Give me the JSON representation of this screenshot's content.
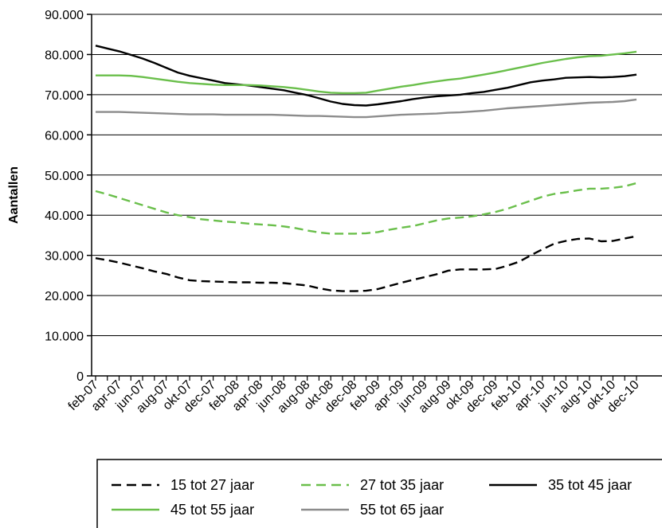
{
  "chart_data": {
    "type": "line",
    "ylabel": "Aantallen",
    "xlabel": "",
    "ylim": [
      0,
      90000
    ],
    "yticks": [
      0,
      10000,
      20000,
      30000,
      40000,
      50000,
      60000,
      70000,
      80000,
      90000
    ],
    "ytick_labels": [
      "0",
      "10.000",
      "20.000",
      "30.000",
      "40.000",
      "50.000",
      "60.000",
      "70.000",
      "80.000",
      "90.000"
    ],
    "categories": [
      "feb-07",
      "mrt-07",
      "apr-07",
      "mei-07",
      "jun-07",
      "jul-07",
      "aug-07",
      "sep-07",
      "okt-07",
      "nov-07",
      "dec-07",
      "jan-08",
      "feb-08",
      "mrt-08",
      "apr-08",
      "mei-08",
      "jun-08",
      "jul-08",
      "aug-08",
      "sep-08",
      "okt-08",
      "nov-08",
      "dec-08",
      "jan-09",
      "feb-09",
      "mrt-09",
      "apr-09",
      "mei-09",
      "jun-09",
      "jul-09",
      "aug-09",
      "sep-09",
      "okt-09",
      "nov-09",
      "dec-09",
      "jan-10",
      "feb-10",
      "mrt-10",
      "apr-10",
      "mei-10",
      "jun-10",
      "jul-10",
      "aug-10",
      "sep-10",
      "okt-10",
      "nov-10",
      "dec-10"
    ],
    "xtick_labels": [
      "feb-07",
      "apr-07",
      "jun-07",
      "aug-07",
      "okt-07",
      "dec-07",
      "feb-08",
      "apr-08",
      "jun-08",
      "aug-08",
      "okt-08",
      "dec-08",
      "feb-09",
      "apr-09",
      "jun-09",
      "aug-09",
      "okt-09",
      "dec-09",
      "feb-10",
      "apr-10",
      "jun-10",
      "aug-10",
      "okt-10",
      "dec-10"
    ],
    "grid": "horizontal",
    "legend_position": "bottom",
    "series": [
      {
        "name": "15 tot 27 jaar",
        "color": "#000000",
        "dash": "dashed",
        "values": [
          29300,
          28800,
          28200,
          27500,
          26800,
          26000,
          25400,
          24500,
          23800,
          23600,
          23500,
          23400,
          23300,
          23300,
          23200,
          23200,
          23100,
          22800,
          22500,
          21800,
          21300,
          21100,
          21100,
          21200,
          21600,
          22400,
          23200,
          23900,
          24600,
          25300,
          26200,
          26500,
          26500,
          26500,
          26600,
          27400,
          28400,
          30000,
          31500,
          32900,
          33600,
          34100,
          34200,
          33500,
          33600,
          34200,
          34800
        ]
      },
      {
        "name": "27 tot 35 jaar",
        "color": "#6abf4b",
        "dash": "dashed",
        "values": [
          46000,
          45200,
          44300,
          43400,
          42500,
          41600,
          40700,
          40000,
          39500,
          39000,
          38700,
          38400,
          38200,
          37900,
          37700,
          37500,
          37200,
          36800,
          36200,
          35700,
          35400,
          35400,
          35400,
          35500,
          35800,
          36400,
          36900,
          37300,
          38000,
          38700,
          39200,
          39400,
          39700,
          40200,
          40800,
          41600,
          42600,
          43600,
          44600,
          45300,
          45700,
          46200,
          46600,
          46600,
          46800,
          47200,
          48000
        ]
      },
      {
        "name": "35 tot 45 jaar",
        "color": "#000000",
        "dash": "solid",
        "values": [
          82200,
          81500,
          80800,
          79900,
          79000,
          77900,
          76700,
          75500,
          74700,
          74100,
          73500,
          72900,
          72600,
          72300,
          71900,
          71500,
          71100,
          70500,
          69900,
          69100,
          68300,
          67700,
          67400,
          67300,
          67600,
          68000,
          68400,
          68900,
          69300,
          69600,
          69800,
          70000,
          70400,
          70700,
          71200,
          71700,
          72400,
          73100,
          73500,
          73800,
          74200,
          74300,
          74400,
          74300,
          74400,
          74600,
          75000
        ]
      },
      {
        "name": "45 tot 55 jaar",
        "color": "#6abf4b",
        "dash": "solid",
        "values": [
          74800,
          74800,
          74800,
          74700,
          74400,
          74000,
          73600,
          73200,
          72900,
          72700,
          72500,
          72400,
          72400,
          72400,
          72300,
          72100,
          71900,
          71600,
          71200,
          70800,
          70500,
          70400,
          70400,
          70500,
          71000,
          71500,
          72000,
          72400,
          72900,
          73300,
          73700,
          74000,
          74500,
          75000,
          75500,
          76100,
          76700,
          77300,
          77900,
          78400,
          78900,
          79300,
          79600,
          79700,
          80000,
          80300,
          80700
        ]
      },
      {
        "name": "55 tot 65 jaar",
        "color": "#8c8c8c",
        "dash": "solid",
        "values": [
          65700,
          65700,
          65700,
          65600,
          65500,
          65400,
          65300,
          65200,
          65100,
          65100,
          65100,
          65000,
          65000,
          65000,
          65000,
          65000,
          64900,
          64800,
          64700,
          64700,
          64600,
          64500,
          64400,
          64400,
          64600,
          64800,
          65000,
          65100,
          65200,
          65300,
          65500,
          65600,
          65800,
          66000,
          66300,
          66600,
          66800,
          67000,
          67200,
          67400,
          67600,
          67800,
          68000,
          68100,
          68200,
          68400,
          68800
        ]
      }
    ]
  }
}
